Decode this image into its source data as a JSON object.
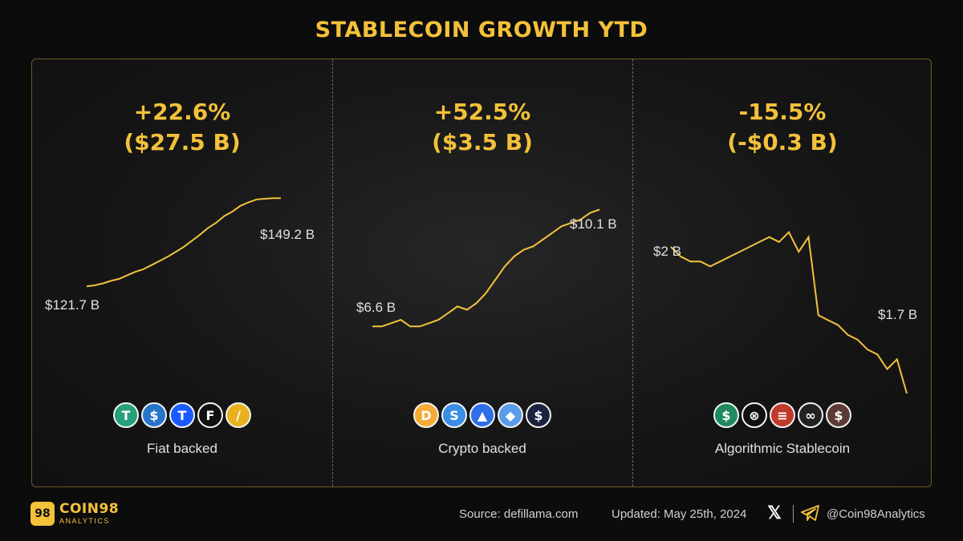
{
  "title": "STABLECOIN GROWTH YTD",
  "colors": {
    "accent": "#f3c13a",
    "line": "#f3c13a"
  },
  "sections": [
    {
      "growth_pct": "+22.6%",
      "growth_abs": "($27.5 B)",
      "start_label": "$121.7 B",
      "end_label": "$149.2 B",
      "category": "Fiat backed",
      "coins": [
        {
          "icon": "tether-icon",
          "glyph": "T",
          "color": "#26a17b"
        },
        {
          "icon": "usdc-icon",
          "glyph": "$",
          "color": "#2775ca"
        },
        {
          "icon": "trueusd-icon",
          "glyph": "T",
          "color": "#1a5aff"
        },
        {
          "icon": "first-digital-usd-icon",
          "glyph": "F",
          "color": "#111111"
        },
        {
          "icon": "paxos-gold-icon",
          "glyph": "/",
          "color": "#e8b21e"
        }
      ]
    },
    {
      "growth_pct": "+52.5%",
      "growth_abs": "($3.5 B)",
      "start_label": "$6.6 B",
      "end_label": "$10.1 B",
      "category": "Crypto backed",
      "coins": [
        {
          "icon": "dai-icon",
          "glyph": "D",
          "color": "#f5ac37"
        },
        {
          "icon": "usde-icon",
          "glyph": "S",
          "color": "#3a8ee6"
        },
        {
          "icon": "lusd-icon",
          "glyph": "▲",
          "color": "#2f6ee8"
        },
        {
          "icon": "eusd-icon",
          "glyph": "◆",
          "color": "#5a9bea"
        },
        {
          "icon": "crvusd-icon",
          "glyph": "$",
          "color": "#1c2240"
        }
      ]
    },
    {
      "growth_pct": "-15.5%",
      "growth_abs": "(-$0.3 B)",
      "start_label": "$2 B",
      "end_label": "$1.7 B",
      "category": "Algorithmic Stablecoin",
      "coins": [
        {
          "icon": "usdd-icon",
          "glyph": "$",
          "color": "#1f8a5e"
        },
        {
          "icon": "frax-icon",
          "glyph": "⊗",
          "color": "#111111"
        },
        {
          "icon": "usdx-flag-icon",
          "glyph": "≡",
          "color": "#c0392b"
        },
        {
          "icon": "usdj-icon",
          "glyph": "∞",
          "color": "#222222"
        },
        {
          "icon": "alusd-icon",
          "glyph": "$",
          "color": "#5b3b32"
        }
      ]
    }
  ],
  "chart_data": [
    {
      "type": "line",
      "series": [
        {
          "values": [
            121.7,
            122.0,
            122.6,
            123.4,
            124.0,
            125.1,
            126.2,
            127.0,
            128.3,
            129.6,
            130.9,
            132.4,
            134.0,
            135.9,
            137.8,
            139.9,
            141.5,
            143.6,
            145.0,
            146.8,
            147.9,
            148.8,
            149.0,
            149.2,
            149.2
          ]
        }
      ],
      "start_value": 121.7,
      "end_value": 149.2,
      "ylim": [
        110,
        160
      ]
    },
    {
      "type": "line",
      "series": [
        {
          "values": [
            6.6,
            6.6,
            6.7,
            6.8,
            6.6,
            6.6,
            6.7,
            6.8,
            7.0,
            7.2,
            7.1,
            7.3,
            7.6,
            8.0,
            8.4,
            8.7,
            8.9,
            9.0,
            9.2,
            9.4,
            9.6,
            9.7,
            9.8,
            10.0,
            10.1
          ]
        }
      ],
      "start_value": 6.6,
      "end_value": 10.1,
      "ylim": [
        5,
        11
      ]
    },
    {
      "type": "line",
      "series": [
        {
          "values": [
            2.0,
            1.98,
            1.97,
            1.97,
            1.96,
            1.97,
            1.98,
            1.99,
            2.0,
            2.01,
            2.02,
            2.01,
            2.03,
            1.99,
            2.02,
            1.86,
            1.85,
            1.84,
            1.82,
            1.81,
            1.79,
            1.78,
            1.75,
            1.77,
            1.7
          ]
        }
      ],
      "start_value": 2.0,
      "end_value": 1.7,
      "ylim": [
        1.4,
        2.4
      ]
    }
  ],
  "footer": {
    "brand": "COIN98",
    "brand_sub": "ANALYTICS",
    "logo_glyph": "98",
    "source": "Source: defillama.com",
    "updated": "Updated: May 25th, 2024",
    "handle": "@Coin98Analytics"
  }
}
